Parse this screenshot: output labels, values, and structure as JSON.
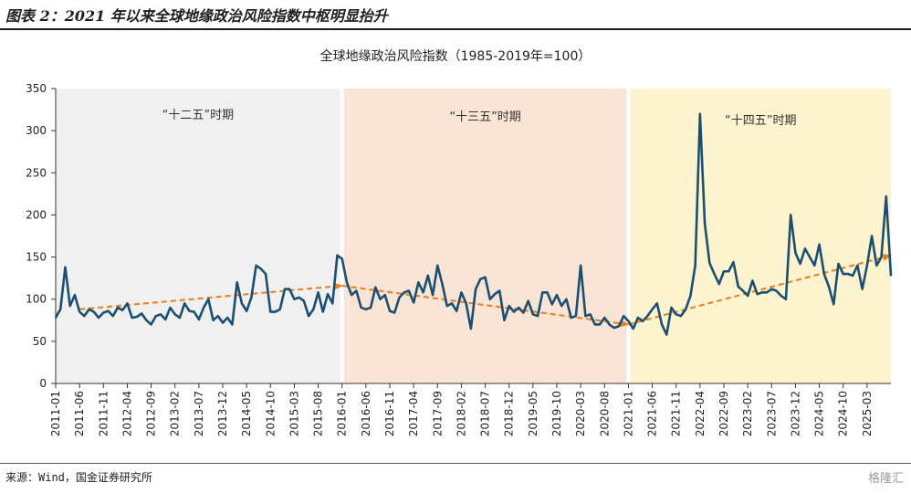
{
  "figure_title": "图表 2：2021 年以来全球地缘政治风险指数中枢明显抬升",
  "source": "来源：Wind，国金证券研究所",
  "watermark": "格隆汇",
  "colors": {
    "line": "#1b4f72",
    "trend": "#e67e22",
    "period1": "#f0f0f0",
    "period2": "#f9e4d6",
    "period3": "#fdf3cf"
  },
  "chart_data": {
    "type": "line",
    "title": "全球地缘政治风险指数（1985-2019年=100）",
    "xlabel": "",
    "ylabel": "",
    "ylim": [
      0,
      350
    ],
    "yticks": [
      0,
      50,
      100,
      150,
      200,
      250,
      300,
      350
    ],
    "x_start": "2011-01",
    "x_end": "2025-08",
    "xticks": [
      "2011-01",
      "2011-06",
      "2011-11",
      "2012-04",
      "2012-09",
      "2013-02",
      "2013-07",
      "2013-12",
      "2014-05",
      "2014-10",
      "2015-03",
      "2015-08",
      "2016-01",
      "2016-06",
      "2016-11",
      "2017-04",
      "2017-09",
      "2018-02",
      "2018-07",
      "2018-12",
      "2019-05",
      "2019-10",
      "2020-03",
      "2020-08",
      "2021-01",
      "2021-06",
      "2021-11",
      "2022-04",
      "2022-09",
      "2023-02",
      "2023-07",
      "2023-12",
      "2024-05",
      "2024-10",
      "2025-03"
    ],
    "grid": false,
    "periods": [
      {
        "label": "“十二五”时期",
        "start": "2011-01",
        "end": "2015-12"
      },
      {
        "label": "“十三五”时期",
        "start": "2016-01",
        "end": "2020-12"
      },
      {
        "label": "“十四五”时期",
        "start": "2021-01",
        "end": "2025-08"
      }
    ],
    "trends": [
      {
        "from": [
          "2011-06",
          88
        ],
        "to": [
          "2016-01",
          116
        ]
      },
      {
        "from": [
          "2016-01",
          116
        ],
        "to": [
          "2021-01",
          70
        ]
      },
      {
        "from": [
          "2021-01",
          70
        ],
        "to": [
          "2025-08",
          152
        ]
      }
    ],
    "series": [
      {
        "values": [
          78,
          88,
          138,
          92,
          105,
          85,
          80,
          88,
          85,
          78,
          84,
          86,
          80,
          90,
          87,
          95,
          78,
          79,
          83,
          75,
          70,
          80,
          82,
          76,
          90,
          82,
          78,
          95,
          86,
          85,
          76,
          90,
          100,
          75,
          80,
          72,
          78,
          70,
          120,
          95,
          86,
          102,
          140,
          136,
          130,
          85,
          85,
          88,
          112,
          112,
          100,
          102,
          98,
          80,
          88,
          108,
          85,
          106,
          95,
          152,
          148,
          120,
          105,
          110,
          90,
          88,
          90,
          114,
          100,
          105,
          86,
          84,
          102,
          108,
          110,
          96,
          120,
          108,
          128,
          105,
          140,
          118,
          92,
          95,
          86,
          108,
          95,
          65,
          112,
          124,
          126,
          100,
          106,
          110,
          75,
          92,
          85,
          90,
          84,
          98,
          82,
          80,
          108,
          108,
          94,
          105,
          92,
          100,
          78,
          80,
          140,
          80,
          82,
          70,
          70,
          78,
          70,
          66,
          68,
          80,
          74,
          65,
          78,
          74,
          80,
          88,
          95,
          70,
          58,
          90,
          82,
          80,
          88,
          104,
          140,
          320,
          190,
          143,
          130,
          118,
          133,
          133,
          144,
          115,
          110,
          104,
          122,
          106,
          108,
          108,
          112,
          110,
          104,
          100,
          200,
          155,
          142,
          160,
          150,
          140,
          165,
          130,
          115,
          94,
          142,
          130,
          130,
          128,
          140,
          112,
          140,
          175,
          140,
          150,
          222,
          128
        ]
      }
    ]
  }
}
